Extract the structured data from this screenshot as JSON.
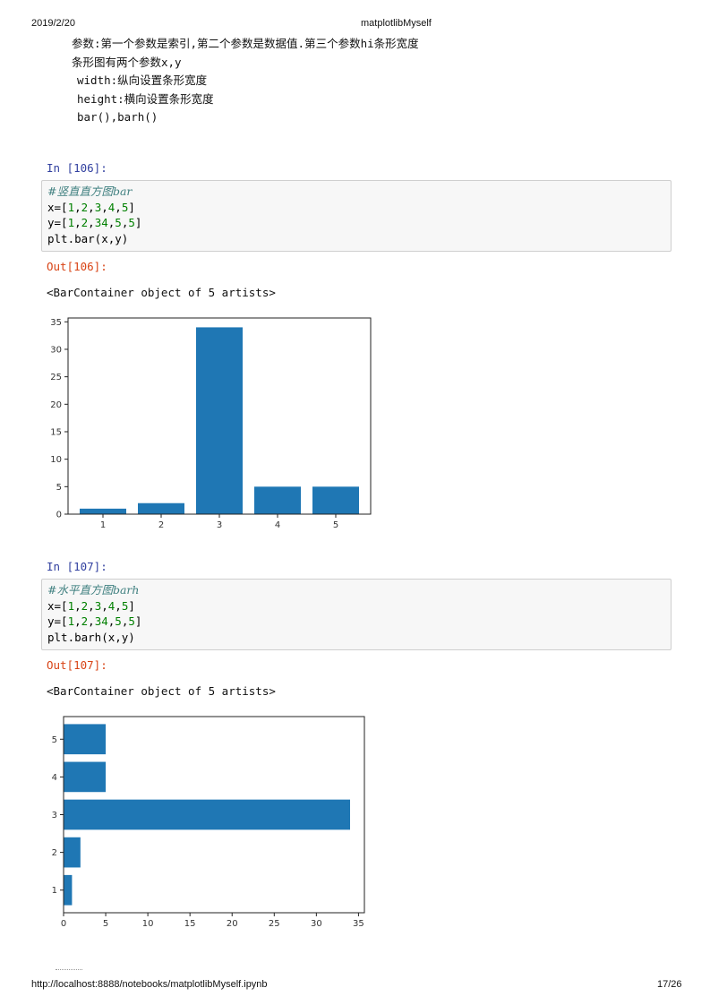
{
  "header": {
    "date": "2019/2/20",
    "title": "matplotlibMyself"
  },
  "footer": {
    "url": "http://localhost:8888/notebooks/matplotlibMyself.ipynb",
    "page": "17/26"
  },
  "markdown": {
    "line1": "参数:第一个参数是索引,第二个参数是数据值.第三个参数hi条形宽度",
    "line2": "条形图有两个参数x,y",
    "line3": "width:纵向设置条形宽度",
    "line4": "height:横向设置条形宽度",
    "line5": "bar(),barh()"
  },
  "cells": [
    {
      "in_prompt": "In  [106]:",
      "comment": "#竖直直方图bar",
      "x_prefix": "x=[",
      "x_vals": [
        "1",
        "2",
        "3",
        "4",
        "5"
      ],
      "y_prefix": "y=[",
      "y_vals": [
        "1",
        "2",
        "34",
        "5",
        "5"
      ],
      "call": "plt.bar(x,y)",
      "out_prompt": "Out[106]:",
      "result": "<BarContainer object of 5 artists>"
    },
    {
      "in_prompt": "In  [107]:",
      "comment": "#水平直方图barh",
      "x_prefix": "x=[",
      "x_vals": [
        "1",
        "2",
        "3",
        "4",
        "5"
      ],
      "y_prefix": "y=[",
      "y_vals": [
        "1",
        "2",
        "34",
        "5",
        "5"
      ],
      "call": "plt.barh(x,y)",
      "out_prompt": "Out[107]:",
      "result": "<BarContainer object of 5 artists>"
    }
  ],
  "chart_data": [
    {
      "type": "bar",
      "orientation": "vertical",
      "categories": [
        "1",
        "2",
        "3",
        "4",
        "5"
      ],
      "values": [
        1,
        2,
        34,
        5,
        5
      ],
      "ylim": [
        0,
        35.7
      ],
      "yticks": [
        "0",
        "5",
        "10",
        "15",
        "20",
        "25",
        "30",
        "35"
      ],
      "bar_color": "#1f77b4",
      "grid": false
    },
    {
      "type": "bar",
      "orientation": "horizontal",
      "categories": [
        "1",
        "2",
        "3",
        "4",
        "5"
      ],
      "values": [
        1,
        2,
        34,
        5,
        5
      ],
      "xlim": [
        0,
        35.7
      ],
      "xticks": [
        "0",
        "5",
        "10",
        "15",
        "20",
        "25",
        "30",
        "35"
      ],
      "bar_color": "#1f77b4",
      "grid": false
    }
  ]
}
